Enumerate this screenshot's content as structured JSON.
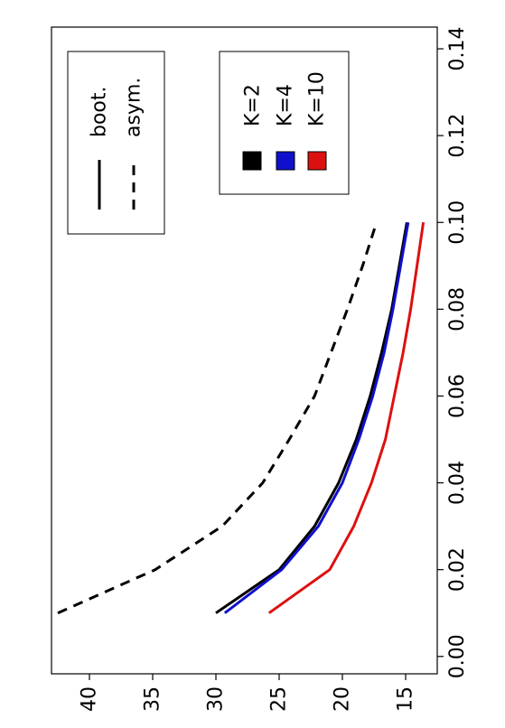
{
  "chart_data": {
    "type": "line",
    "title": "",
    "xlabel": "",
    "ylabel": "",
    "xlim": [
      -0.004,
      0.145
    ],
    "ylim": [
      12.5,
      43
    ],
    "x_ticks": [
      0.0,
      0.02,
      0.04,
      0.06,
      0.08,
      0.1,
      0.12,
      0.14
    ],
    "x_tick_labels": [
      "0.00",
      "0.02",
      "0.04",
      "0.06",
      "0.08",
      "0.10",
      "0.12",
      "0.14"
    ],
    "y_ticks": [
      15,
      20,
      25,
      30,
      35,
      40
    ],
    "y_tick_labels": [
      "15",
      "20",
      "25",
      "30",
      "35",
      "40"
    ],
    "orientation": "rotated-90",
    "grid": false,
    "series": [
      {
        "method": "bootstrap",
        "K": "K=2",
        "color": "#000000",
        "dash": "solid",
        "x": [
          0.01,
          0.02,
          0.03,
          0.04,
          0.05,
          0.06,
          0.07,
          0.08,
          0.09,
          0.1
        ],
        "y": [
          30.0,
          25.0,
          22.2,
          20.3,
          18.9,
          17.8,
          16.9,
          16.1,
          15.5,
          14.9
        ]
      },
      {
        "method": "bootstrap",
        "K": "K=4",
        "color": "#1010cc",
        "dash": "solid",
        "x": [
          0.01,
          0.02,
          0.03,
          0.04,
          0.05,
          0.06,
          0.07,
          0.08,
          0.09,
          0.1
        ],
        "y": [
          29.3,
          24.8,
          21.9,
          20.0,
          18.7,
          17.6,
          16.7,
          16.0,
          15.4,
          14.8
        ]
      },
      {
        "method": "bootstrap",
        "K": "K=10",
        "color": "#dd1010",
        "dash": "solid",
        "x": [
          0.01,
          0.02,
          0.03,
          0.04,
          0.05,
          0.06,
          0.07,
          0.08,
          0.09,
          0.1
        ],
        "y": [
          25.8,
          21.0,
          19.1,
          17.7,
          16.6,
          15.9,
          15.2,
          14.6,
          14.1,
          13.6
        ]
      },
      {
        "method": "asymptotic",
        "K": "",
        "color": "#000000",
        "dash": "dashed",
        "x": [
          0.01,
          0.02,
          0.03,
          0.04,
          0.05,
          0.06,
          0.07,
          0.08,
          0.09,
          0.1
        ],
        "y": [
          42.5,
          34.8,
          29.5,
          26.3,
          24.2,
          22.2,
          20.9,
          19.6,
          18.4,
          17.3
        ]
      }
    ],
    "legends": [
      {
        "placement": "top-left of rotated plot",
        "entries": [
          {
            "label": "boot.",
            "line": "solid"
          },
          {
            "label": "asym.",
            "line": "dashed"
          }
        ]
      },
      {
        "placement": "top-right of rotated plot",
        "entries": [
          {
            "label": "K=2",
            "color": "#000000"
          },
          {
            "label": "K=4",
            "color": "#1010cc"
          },
          {
            "label": "K=10",
            "color": "#dd1010"
          }
        ]
      }
    ]
  }
}
